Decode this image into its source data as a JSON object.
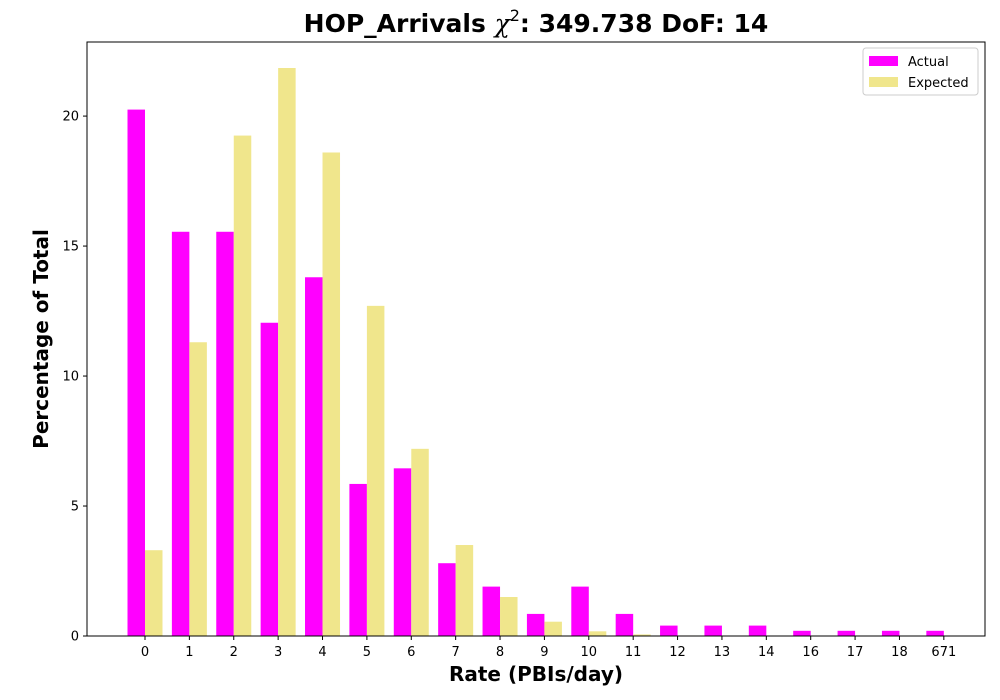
{
  "chart_data": {
    "type": "bar",
    "title_main": "HOP_Arrivals ",
    "title_chi": "χ",
    "title_sup": "2",
    "title_rest": ": 349.738 DoF: 14",
    "xlabel": "Rate (PBIs/day)",
    "ylabel": "Percentage of Total",
    "categories": [
      "0",
      "1",
      "2",
      "3",
      "4",
      "5",
      "6",
      "7",
      "8",
      "9",
      "10",
      "11",
      "12",
      "13",
      "14",
      "16",
      "17",
      "18",
      "671"
    ],
    "series": [
      {
        "name": "Actual",
        "color": "#ff00ff",
        "values": [
          20.25,
          15.55,
          15.55,
          12.05,
          13.8,
          5.85,
          6.45,
          2.8,
          1.9,
          0.85,
          1.9,
          0.85,
          0.4,
          0.4,
          0.4,
          0.2,
          0.2,
          0.2,
          0.2
        ]
      },
      {
        "name": "Expected",
        "color": "#f0e68c",
        "values": [
          3.3,
          11.3,
          19.25,
          21.85,
          18.6,
          12.7,
          7.2,
          3.5,
          1.5,
          0.55,
          0.18,
          0.06,
          0.02,
          0.005,
          0.0,
          0.0,
          0.0,
          0.0,
          0.0
        ]
      }
    ],
    "yticks": [
      0,
      5,
      10,
      15,
      20
    ],
    "ylim": [
      0,
      22.85
    ],
    "grid": false,
    "legend_position": "top-right"
  }
}
